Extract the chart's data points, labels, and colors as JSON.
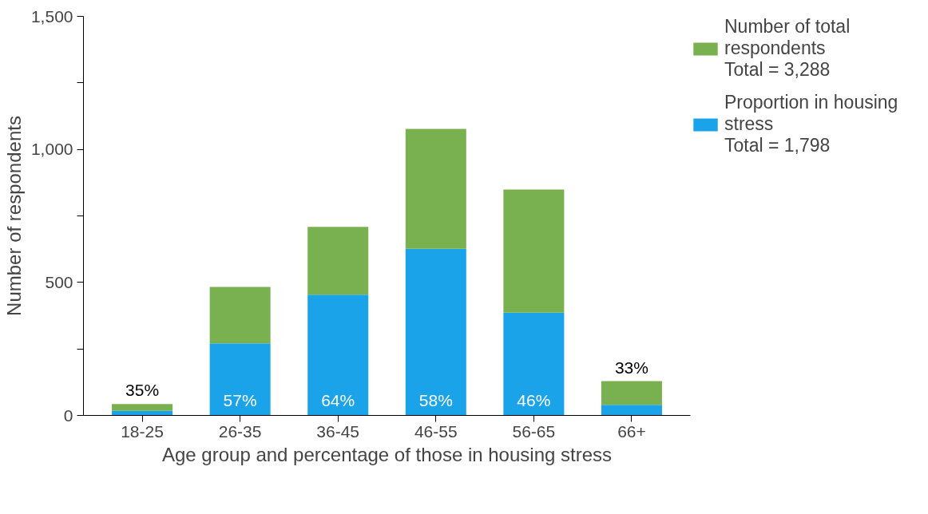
{
  "chart_data": {
    "type": "bar",
    "stacked": true,
    "xlabel": "Age group and percentage of those in housing stress",
    "ylabel": "Number of respondents",
    "categories": [
      "18-25",
      "26-35",
      "36-45",
      "46-55",
      "56-65",
      "66+"
    ],
    "series": [
      {
        "name": "Proportion in housing\nstress\nTotal = 1,798",
        "color": "#1aa3e8",
        "values": [
          17,
          271,
          454,
          626,
          386,
          40
        ]
      },
      {
        "name": "Number of total\nrespondents\nTotal = 3,288",
        "color": "#7ab150",
        "values": [
          26,
          212,
          255,
          451,
          463,
          89
        ]
      }
    ],
    "ylim": [
      0,
      1500
    ],
    "yticks": [
      0,
      {
        "value": 250,
        "label": null
      },
      500,
      {
        "value": 750,
        "label": null
      },
      {
        "value": 1000,
        "label": "1,000"
      },
      {
        "value": 1250,
        "label": null
      },
      {
        "value": 1500,
        "label": "1,500"
      }
    ],
    "annotations": [
      "35%",
      "57%",
      "64%",
      "58%",
      "46%",
      "33%"
    ],
    "legend": "top right",
    "grid": false
  }
}
